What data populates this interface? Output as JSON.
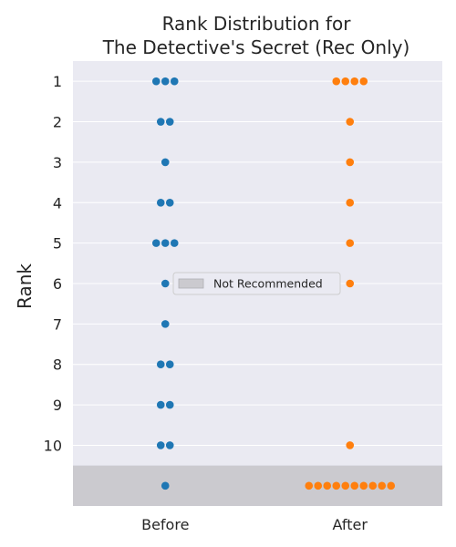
{
  "chart_data": {
    "type": "scatter",
    "subtype": "swarm",
    "title_lines": [
      "Rank Distribution for",
      "The Detective's Secret (Rec Only)"
    ],
    "xlabel": "",
    "ylabel": "Rank",
    "categories": [
      "Before",
      "After"
    ],
    "y_ticks": [
      1,
      2,
      3,
      4,
      5,
      6,
      7,
      8,
      9,
      10
    ],
    "y_range": [
      0.5,
      11.5
    ],
    "grid": true,
    "not_recommended_label": "Not Recommended",
    "legend_position": "center-right",
    "series": [
      {
        "name": "Before",
        "color": "#1f77b4",
        "points": [
          {
            "rank": 1,
            "count": 3
          },
          {
            "rank": 2,
            "count": 2
          },
          {
            "rank": 3,
            "count": 1
          },
          {
            "rank": 4,
            "count": 2
          },
          {
            "rank": 5,
            "count": 3
          },
          {
            "rank": 6,
            "count": 1
          },
          {
            "rank": 7,
            "count": 1
          },
          {
            "rank": 8,
            "count": 2
          },
          {
            "rank": 9,
            "count": 2
          },
          {
            "rank": 10,
            "count": 2
          },
          {
            "rank": "Not Recommended",
            "count": 1
          }
        ]
      },
      {
        "name": "After",
        "color": "#ff7f0e",
        "points": [
          {
            "rank": 1,
            "count": 4
          },
          {
            "rank": 2,
            "count": 1
          },
          {
            "rank": 3,
            "count": 1
          },
          {
            "rank": 4,
            "count": 1
          },
          {
            "rank": 5,
            "count": 1
          },
          {
            "rank": 6,
            "count": 1
          },
          {
            "rank": 10,
            "count": 1
          },
          {
            "rank": "Not Recommended",
            "count": 10
          }
        ]
      }
    ],
    "colors": {
      "plot_background": "#eaeaf2",
      "not_recommended_band": "#cbcacf",
      "grid": "#ffffff"
    }
  }
}
